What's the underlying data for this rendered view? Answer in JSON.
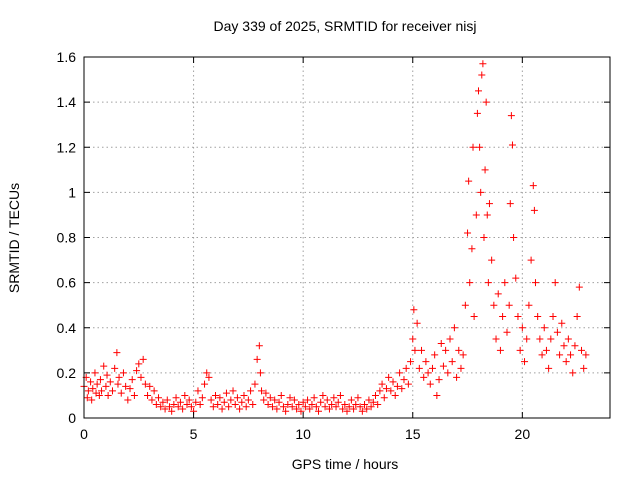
{
  "chart_data": {
    "type": "scatter",
    "title": "Day 339 of 2025, SRMTID for receiver nisj",
    "xlabel": "GPS time / hours",
    "ylabel": "SRMTID / TECUs",
    "xlim": [
      0,
      24
    ],
    "ylim": [
      0,
      1.6
    ],
    "xticks": [
      0,
      5,
      10,
      15,
      20
    ],
    "xtick_labels": [
      "0",
      "5",
      "10",
      "15",
      "20"
    ],
    "yticks": [
      0,
      0.2,
      0.4,
      0.6,
      0.8,
      1.0,
      1.2,
      1.4,
      1.6
    ],
    "ytick_labels": [
      "0",
      "0.2",
      "0.4",
      "0.6",
      "0.8",
      "1",
      "1.2",
      "1.4",
      "1.6"
    ],
    "grid": true,
    "marker": "+",
    "color": "#ff0000",
    "series": [
      {
        "name": "SRMTID",
        "points": [
          [
            0.0,
            0.14
          ],
          [
            0.1,
            0.18
          ],
          [
            0.15,
            0.09
          ],
          [
            0.2,
            0.12
          ],
          [
            0.3,
            0.16
          ],
          [
            0.35,
            0.08
          ],
          [
            0.4,
            0.13
          ],
          [
            0.5,
            0.2
          ],
          [
            0.55,
            0.11
          ],
          [
            0.6,
            0.15
          ],
          [
            0.7,
            0.1
          ],
          [
            0.75,
            0.17
          ],
          [
            0.8,
            0.12
          ],
          [
            0.9,
            0.23
          ],
          [
            1.0,
            0.14
          ],
          [
            1.05,
            0.19
          ],
          [
            1.1,
            0.1
          ],
          [
            1.2,
            0.16
          ],
          [
            1.3,
            0.12
          ],
          [
            1.4,
            0.22
          ],
          [
            1.5,
            0.29
          ],
          [
            1.55,
            0.15
          ],
          [
            1.6,
            0.18
          ],
          [
            1.7,
            0.11
          ],
          [
            1.8,
            0.2
          ],
          [
            1.9,
            0.14
          ],
          [
            2.0,
            0.08
          ],
          [
            2.1,
            0.13
          ],
          [
            2.2,
            0.17
          ],
          [
            2.3,
            0.1
          ],
          [
            2.4,
            0.21
          ],
          [
            2.5,
            0.24
          ],
          [
            2.6,
            0.18
          ],
          [
            2.7,
            0.26
          ],
          [
            2.8,
            0.15
          ],
          [
            2.9,
            0.1
          ],
          [
            3.0,
            0.14
          ],
          [
            3.1,
            0.08
          ],
          [
            3.2,
            0.12
          ],
          [
            3.3,
            0.06
          ],
          [
            3.4,
            0.09
          ],
          [
            3.5,
            0.05
          ],
          [
            3.6,
            0.07
          ],
          [
            3.7,
            0.04
          ],
          [
            3.8,
            0.08
          ],
          [
            3.9,
            0.05
          ],
          [
            4.0,
            0.03
          ],
          [
            4.1,
            0.06
          ],
          [
            4.2,
            0.09
          ],
          [
            4.3,
            0.05
          ],
          [
            4.4,
            0.07
          ],
          [
            4.5,
            0.04
          ],
          [
            4.6,
            0.1
          ],
          [
            4.7,
            0.06
          ],
          [
            4.8,
            0.08
          ],
          [
            4.9,
            0.05
          ],
          [
            5.0,
            0.03
          ],
          [
            5.1,
            0.07
          ],
          [
            5.2,
            0.12
          ],
          [
            5.3,
            0.06
          ],
          [
            5.4,
            0.09
          ],
          [
            5.5,
            0.15
          ],
          [
            5.6,
            0.2
          ],
          [
            5.7,
            0.18
          ],
          [
            5.8,
            0.08
          ],
          [
            5.9,
            0.05
          ],
          [
            6.0,
            0.1
          ],
          [
            6.1,
            0.06
          ],
          [
            6.2,
            0.09
          ],
          [
            6.3,
            0.04
          ],
          [
            6.4,
            0.07
          ],
          [
            6.5,
            0.11
          ],
          [
            6.6,
            0.05
          ],
          [
            6.7,
            0.08
          ],
          [
            6.8,
            0.12
          ],
          [
            6.9,
            0.06
          ],
          [
            7.0,
            0.09
          ],
          [
            7.1,
            0.04
          ],
          [
            7.2,
            0.07
          ],
          [
            7.3,
            0.1
          ],
          [
            7.4,
            0.05
          ],
          [
            7.5,
            0.08
          ],
          [
            7.6,
            0.12
          ],
          [
            7.7,
            0.06
          ],
          [
            7.8,
            0.15
          ],
          [
            7.9,
            0.26
          ],
          [
            8.0,
            0.32
          ],
          [
            8.05,
            0.2
          ],
          [
            8.1,
            0.12
          ],
          [
            8.2,
            0.08
          ],
          [
            8.3,
            0.11
          ],
          [
            8.4,
            0.06
          ],
          [
            8.5,
            0.09
          ],
          [
            8.6,
            0.05
          ],
          [
            8.7,
            0.08
          ],
          [
            8.8,
            0.04
          ],
          [
            8.9,
            0.07
          ],
          [
            9.0,
            0.1
          ],
          [
            9.1,
            0.05
          ],
          [
            9.2,
            0.03
          ],
          [
            9.3,
            0.06
          ],
          [
            9.4,
            0.09
          ],
          [
            9.5,
            0.05
          ],
          [
            9.6,
            0.08
          ],
          [
            9.7,
            0.04
          ],
          [
            9.8,
            0.06
          ],
          [
            9.9,
            0.03
          ],
          [
            10.0,
            0.07
          ],
          [
            10.1,
            0.05
          ],
          [
            10.2,
            0.08
          ],
          [
            10.3,
            0.04
          ],
          [
            10.4,
            0.06
          ],
          [
            10.5,
            0.09
          ],
          [
            10.6,
            0.05
          ],
          [
            10.7,
            0.03
          ],
          [
            10.8,
            0.07
          ],
          [
            10.9,
            0.1
          ],
          [
            11.0,
            0.05
          ],
          [
            11.1,
            0.08
          ],
          [
            11.2,
            0.04
          ],
          [
            11.3,
            0.06
          ],
          [
            11.4,
            0.09
          ],
          [
            11.5,
            0.05
          ],
          [
            11.6,
            0.07
          ],
          [
            11.7,
            0.1
          ],
          [
            11.8,
            0.04
          ],
          [
            11.9,
            0.06
          ],
          [
            12.0,
            0.03
          ],
          [
            12.1,
            0.05
          ],
          [
            12.2,
            0.08
          ],
          [
            12.3,
            0.04
          ],
          [
            12.4,
            0.06
          ],
          [
            12.5,
            0.09
          ],
          [
            12.6,
            0.05
          ],
          [
            12.7,
            0.03
          ],
          [
            12.8,
            0.06
          ],
          [
            12.9,
            0.04
          ],
          [
            13.0,
            0.08
          ],
          [
            13.1,
            0.05
          ],
          [
            13.2,
            0.07
          ],
          [
            13.3,
            0.1
          ],
          [
            13.4,
            0.06
          ],
          [
            13.5,
            0.12
          ],
          [
            13.6,
            0.15
          ],
          [
            13.7,
            0.09
          ],
          [
            13.8,
            0.13
          ],
          [
            13.9,
            0.18
          ],
          [
            14.0,
            0.12
          ],
          [
            14.1,
            0.16
          ],
          [
            14.2,
            0.1
          ],
          [
            14.3,
            0.14
          ],
          [
            14.4,
            0.2
          ],
          [
            14.5,
            0.13
          ],
          [
            14.6,
            0.17
          ],
          [
            14.7,
            0.22
          ],
          [
            14.8,
            0.15
          ],
          [
            14.9,
            0.25
          ],
          [
            15.0,
            0.35
          ],
          [
            15.05,
            0.48
          ],
          [
            15.1,
            0.3
          ],
          [
            15.2,
            0.42
          ],
          [
            15.3,
            0.22
          ],
          [
            15.4,
            0.3
          ],
          [
            15.5,
            0.18
          ],
          [
            15.6,
            0.25
          ],
          [
            15.7,
            0.2
          ],
          [
            15.8,
            0.15
          ],
          [
            15.9,
            0.22
          ],
          [
            16.0,
            0.28
          ],
          [
            16.1,
            0.1
          ],
          [
            16.2,
            0.17
          ],
          [
            16.3,
            0.33
          ],
          [
            16.4,
            0.23
          ],
          [
            16.5,
            0.3
          ],
          [
            16.6,
            0.2
          ],
          [
            16.7,
            0.35
          ],
          [
            16.8,
            0.25
          ],
          [
            16.9,
            0.4
          ],
          [
            17.0,
            0.18
          ],
          [
            17.1,
            0.3
          ],
          [
            17.2,
            0.22
          ],
          [
            17.3,
            0.28
          ],
          [
            17.4,
            0.5
          ],
          [
            17.5,
            0.82
          ],
          [
            17.55,
            1.05
          ],
          [
            17.6,
            0.6
          ],
          [
            17.7,
            0.75
          ],
          [
            17.75,
            1.2
          ],
          [
            17.8,
            0.45
          ],
          [
            17.9,
            0.9
          ],
          [
            17.95,
            1.35
          ],
          [
            18.0,
            1.45
          ],
          [
            18.05,
            1.2
          ],
          [
            18.1,
            1.0
          ],
          [
            18.15,
            1.52
          ],
          [
            18.2,
            1.57
          ],
          [
            18.25,
            0.8
          ],
          [
            18.3,
            1.1
          ],
          [
            18.35,
            1.4
          ],
          [
            18.4,
            0.9
          ],
          [
            18.45,
            0.6
          ],
          [
            18.5,
            0.95
          ],
          [
            18.6,
            0.7
          ],
          [
            18.7,
            0.5
          ],
          [
            18.8,
            0.35
          ],
          [
            18.9,
            0.55
          ],
          [
            19.0,
            0.3
          ],
          [
            19.1,
            0.45
          ],
          [
            19.2,
            0.6
          ],
          [
            19.3,
            0.38
          ],
          [
            19.4,
            0.5
          ],
          [
            19.45,
            0.95
          ],
          [
            19.5,
            1.34
          ],
          [
            19.55,
            1.21
          ],
          [
            19.6,
            0.8
          ],
          [
            19.7,
            0.62
          ],
          [
            19.8,
            0.45
          ],
          [
            19.9,
            0.3
          ],
          [
            20.0,
            0.4
          ],
          [
            20.1,
            0.25
          ],
          [
            20.2,
            0.35
          ],
          [
            20.3,
            0.5
          ],
          [
            20.4,
            0.7
          ],
          [
            20.5,
            1.03
          ],
          [
            20.55,
            0.92
          ],
          [
            20.6,
            0.6
          ],
          [
            20.7,
            0.45
          ],
          [
            20.8,
            0.35
          ],
          [
            20.9,
            0.28
          ],
          [
            21.0,
            0.4
          ],
          [
            21.1,
            0.3
          ],
          [
            21.2,
            0.22
          ],
          [
            21.3,
            0.35
          ],
          [
            21.4,
            0.45
          ],
          [
            21.5,
            0.6
          ],
          [
            21.6,
            0.38
          ],
          [
            21.7,
            0.28
          ],
          [
            21.8,
            0.42
          ],
          [
            21.9,
            0.32
          ],
          [
            22.0,
            0.25
          ],
          [
            22.1,
            0.35
          ],
          [
            22.2,
            0.28
          ],
          [
            22.3,
            0.2
          ],
          [
            22.4,
            0.32
          ],
          [
            22.5,
            0.45
          ],
          [
            22.6,
            0.58
          ],
          [
            22.7,
            0.3
          ],
          [
            22.8,
            0.22
          ],
          [
            22.9,
            0.28
          ]
        ]
      }
    ]
  }
}
